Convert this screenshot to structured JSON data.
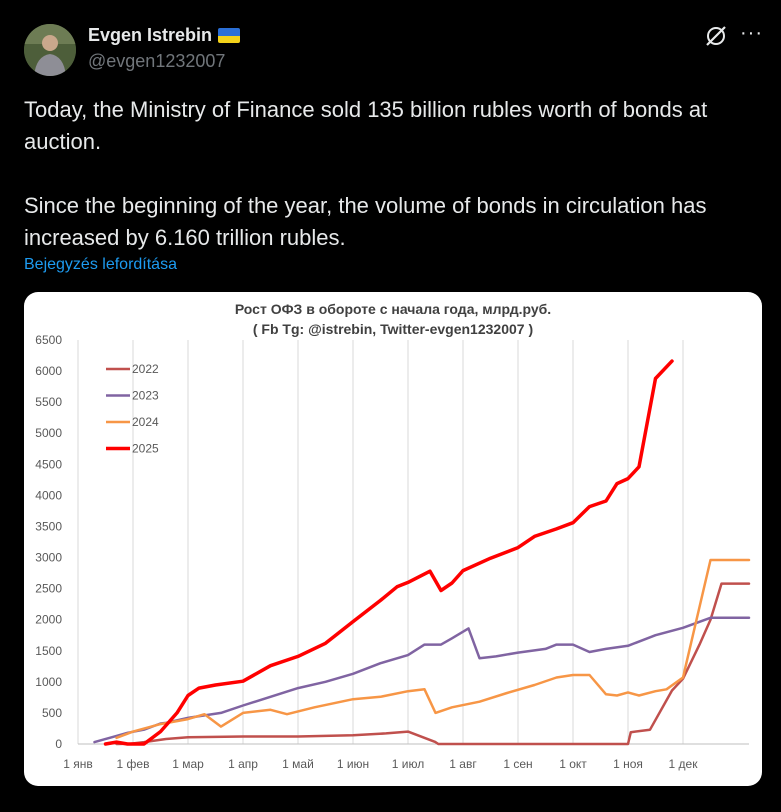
{
  "tweet": {
    "author_name": "Evgen Istrebin",
    "handle": "@evgen1232007",
    "paragraphs": [
      "Today, the Ministry of Finance sold 135 billion rubles worth of bonds at auction.",
      "Since the beginning of the year, the volume of bonds in circulation has increased by 6.160 trillion rubles."
    ],
    "translate_label": "Bejegyzés lefordítása",
    "more_label": "···"
  },
  "colors": {
    "2022": "#c0504d",
    "2023": "#8064a2",
    "2024": "#f79646",
    "2025": "#ff0000",
    "link": "#1d9bf0"
  },
  "chart_data": {
    "type": "line",
    "title": "Рост ОФЗ в обороте с начала года, млрд.руб.",
    "subtitle": "( Fb Tg: @istrebin, Twitter-evgen1232007 )",
    "xlabel": "",
    "ylabel": "",
    "ylim": [
      0,
      6500
    ],
    "xlim": [
      0,
      12.2
    ],
    "y_ticks": [
      0,
      500,
      1000,
      1500,
      2000,
      2500,
      3000,
      3500,
      4000,
      4500,
      5000,
      5500,
      6000,
      6500
    ],
    "x_ticks": [
      {
        "label": "1 янв",
        "x": 0
      },
      {
        "label": "1 фев",
        "x": 1
      },
      {
        "label": "1 мар",
        "x": 2
      },
      {
        "label": "1 апр",
        "x": 3
      },
      {
        "label": "1 май",
        "x": 4
      },
      {
        "label": "1 июн",
        "x": 5
      },
      {
        "label": "1 июл",
        "x": 6
      },
      {
        "label": "1 авг",
        "x": 7
      },
      {
        "label": "1 сен",
        "x": 8
      },
      {
        "label": "1 окт",
        "x": 9
      },
      {
        "label": "1 ноя",
        "x": 10
      },
      {
        "label": "1 дек",
        "x": 11
      }
    ],
    "grid": "vertical",
    "legend": "top-left",
    "series": [
      {
        "name": "2022",
        "x": [
          0.7,
          0.95,
          1.2,
          1.6,
          2.0,
          3.0,
          4.0,
          5.0,
          5.6,
          6.0,
          6.5,
          6.55,
          10.0,
          10.05,
          10.4,
          10.8,
          11.0,
          11.3,
          11.5,
          11.7,
          12.2
        ],
        "values": [
          0,
          5,
          30,
          80,
          110,
          120,
          120,
          140,
          170,
          200,
          30,
          0,
          0,
          190,
          230,
          860,
          1050,
          1600,
          2000,
          2580,
          2580
        ]
      },
      {
        "name": "2023",
        "x": [
          0.3,
          0.7,
          0.9,
          1.2,
          1.5,
          1.6,
          2.0,
          2.6,
          3.0,
          4.0,
          4.5,
          5.0,
          5.5,
          6.0,
          6.3,
          6.6,
          6.8,
          7.1,
          7.3,
          7.6,
          8.0,
          8.5,
          8.7,
          9.0,
          9.3,
          9.6,
          10.0,
          10.5,
          11.0,
          11.5,
          12.2
        ],
        "values": [
          30,
          130,
          180,
          230,
          330,
          340,
          420,
          500,
          620,
          900,
          1000,
          1130,
          1300,
          1430,
          1600,
          1600,
          1700,
          1860,
          1380,
          1410,
          1470,
          1530,
          1600,
          1600,
          1480,
          1530,
          1580,
          1750,
          1870,
          2030,
          2030
        ]
      },
      {
        "name": "2024",
        "x": [
          0.7,
          1.0,
          1.5,
          2.0,
          2.3,
          2.6,
          3.0,
          3.5,
          3.8,
          4.3,
          5.0,
          5.5,
          6.0,
          6.3,
          6.5,
          6.8,
          7.3,
          7.8,
          8.3,
          8.7,
          9.0,
          9.3,
          9.6,
          9.8,
          10.0,
          10.2,
          10.5,
          10.7,
          11.0,
          11.5,
          12.2
        ],
        "values": [
          100,
          200,
          320,
          400,
          480,
          280,
          500,
          550,
          480,
          590,
          720,
          760,
          850,
          880,
          500,
          590,
          680,
          820,
          950,
          1070,
          1110,
          1110,
          800,
          780,
          830,
          780,
          850,
          880,
          1070,
          2960,
          2960
        ]
      },
      {
        "name": "2025",
        "x": [
          0.5,
          0.7,
          0.9,
          1.2,
          1.5,
          1.8,
          2.0,
          2.2,
          2.5,
          3.0,
          3.5,
          4.0,
          4.5,
          5.0,
          5.5,
          5.8,
          6.0,
          6.4,
          6.6,
          6.8,
          7.0,
          7.5,
          8.0,
          8.3,
          8.7,
          9.0,
          9.3,
          9.6,
          9.8,
          10.0,
          10.2,
          10.5,
          10.8
        ],
        "values": [
          0,
          30,
          0,
          0,
          200,
          500,
          780,
          900,
          950,
          1010,
          1260,
          1410,
          1620,
          1970,
          2310,
          2530,
          2600,
          2780,
          2470,
          2590,
          2790,
          2990,
          3160,
          3340,
          3460,
          3560,
          3820,
          3910,
          4190,
          4270,
          4460,
          5880,
          6160
        ]
      }
    ]
  }
}
